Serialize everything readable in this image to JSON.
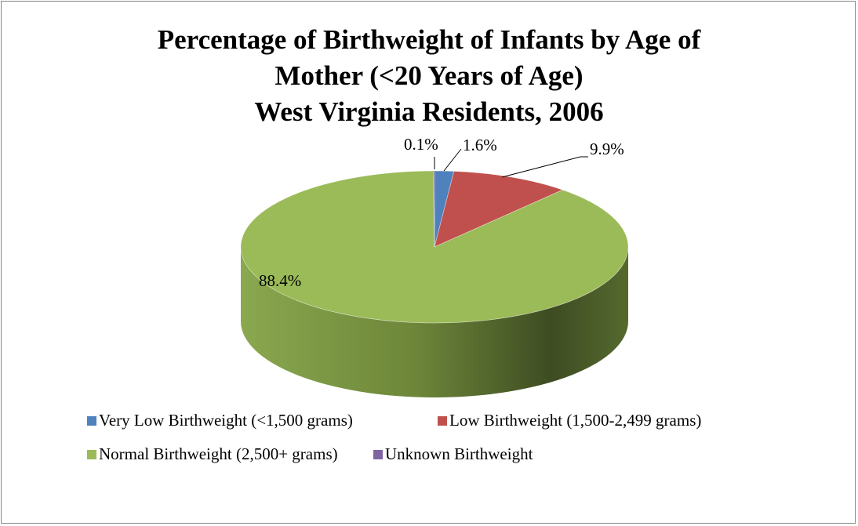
{
  "chart_data": {
    "type": "pie",
    "title": "Percentage of Birthweight of Infants by Age of Mother (<20 Years of Age)",
    "subtitle": "West Virginia Residents, 2006",
    "categories": [
      "Very Low Birthweight (<1,500 grams)",
      "Low Birthweight (1,500-2,499 grams)",
      "Normal Birthweight (2,500+ grams)",
      "Unknown Birthweight"
    ],
    "values": [
      1.6,
      9.9,
      88.4,
      0.1
    ],
    "value_labels": [
      "1.6%",
      "9.9%",
      "88.4%",
      "0.1%"
    ],
    "colors": [
      "#4f81bd",
      "#c0504d",
      "#9bbb59",
      "#8064a2"
    ],
    "legend": "bottom"
  }
}
